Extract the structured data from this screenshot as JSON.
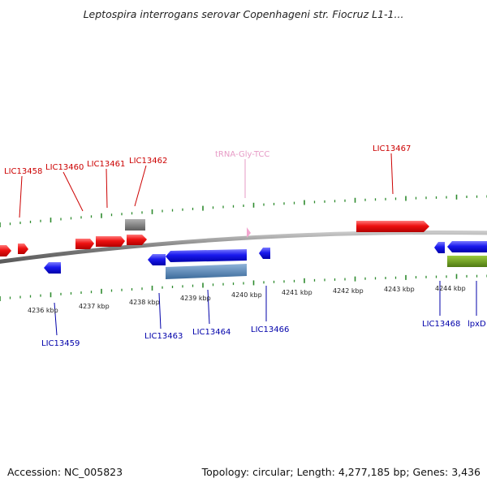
{
  "title": "Leptospira interrogans serovar Copenhageni str. Fiocruz L1-1...",
  "accession": "Accession: NC_005823",
  "topology": "Topology: circular; Length: 4,277,185 bp; Genes: 3,436",
  "colors": {
    "background": "#ffffff",
    "backbone": "#8c8c8c",
    "tick": "#2e8b2e",
    "forward_gene": "#ee1111",
    "reverse_gene": "#1a1aee",
    "forward_label": "#cc0000",
    "reverse_label": "#0000aa",
    "trna_label": "#e79bc6",
    "pseudo_gene": "#777777",
    "cds_block": "#4f81b5",
    "other_block": "#6b8e23"
  },
  "axis_labels": [
    "4236 kbp",
    "4237 kbp",
    "4238 kbp",
    "4239 kbp",
    "4240 kbp",
    "4241 kbp",
    "4242 kbp",
    "4243 kbp",
    "4244 kbp"
  ],
  "top_labels": [
    {
      "text": "LIC13458",
      "kind": "forward"
    },
    {
      "text": "LIC13460",
      "kind": "forward"
    },
    {
      "text": "LIC13461",
      "kind": "forward"
    },
    {
      "text": "LIC13462",
      "kind": "forward"
    },
    {
      "text": "tRNA-Gly-TCC",
      "kind": "trna"
    },
    {
      "text": "LIC13467",
      "kind": "forward"
    }
  ],
  "bottom_labels": [
    {
      "text": "LIC13459",
      "kind": "reverse"
    },
    {
      "text": "LIC13463",
      "kind": "reverse"
    },
    {
      "text": "LIC13464",
      "kind": "reverse"
    },
    {
      "text": "LIC13466",
      "kind": "reverse"
    },
    {
      "text": "LIC13468",
      "kind": "reverse"
    },
    {
      "text": "lpxD",
      "kind": "reverse"
    }
  ]
}
